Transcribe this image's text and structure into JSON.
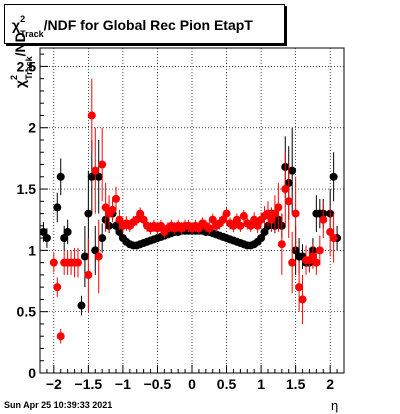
{
  "title": {
    "prefix": "χ",
    "sup": "2",
    "sub": "Track",
    "suffix": "/NDF for Global Rec Pion EtapT"
  },
  "ylabel": {
    "prefix": "χ",
    "sup": "2",
    "sub": "Track",
    "suffix": "/ND"
  },
  "xlabel": "η",
  "timestamp": "Sun Apr 25 10:39:33 2021",
  "chart_data": {
    "type": "scatter",
    "title": "χ2Track/NDF for Global Rec Pion EtapT",
    "xlabel": "η",
    "ylabel": "χ2Track/ND",
    "xlim": [
      -2.2,
      2.2
    ],
    "ylim": [
      0,
      2.65
    ],
    "grid": true,
    "x_ticks": [
      -2,
      -1.5,
      -1,
      -0.5,
      0,
      0.5,
      1,
      1.5,
      2
    ],
    "x_tick_labels": [
      "−2",
      "−1.5",
      "−1",
      "−0.5",
      "0",
      "0.5",
      "1",
      "1.5",
      "2"
    ],
    "y_ticks": [
      0,
      0.5,
      1,
      1.5,
      2,
      2.5
    ],
    "y_tick_labels": [
      "0",
      "0.5",
      "1",
      "1.5",
      "2",
      "2.5"
    ],
    "series": [
      {
        "color": "#000000",
        "points": [
          [
            -2.15,
            1.15,
            0.08
          ],
          [
            -2.1,
            1.1,
            0.08
          ],
          [
            -1.95,
            1.35,
            0.12
          ],
          [
            -1.9,
            1.6,
            0.15
          ],
          [
            -1.85,
            1.1,
            0.1
          ],
          [
            -1.8,
            1.15,
            0.1
          ],
          [
            -1.6,
            0.55,
            0.08
          ],
          [
            -1.55,
            0.95,
            0.25
          ],
          [
            -1.5,
            1.3,
            0.35
          ],
          [
            -1.45,
            1.6,
            0.3
          ],
          [
            -1.4,
            1.0,
            0.2
          ],
          [
            -1.35,
            1.6,
            0.3
          ],
          [
            -1.3,
            1.1,
            0.12
          ],
          [
            -1.25,
            1.25,
            0.08
          ],
          [
            -1.2,
            1.2,
            0.06
          ],
          [
            -1.15,
            1.3,
            0.05
          ],
          [
            -1.1,
            1.2,
            0.04
          ],
          [
            -1.05,
            1.15,
            0.04
          ],
          [
            -1.0,
            1.1,
            0.03
          ],
          [
            -0.95,
            1.07,
            0.03
          ],
          [
            -0.9,
            1.05,
            0.03
          ],
          [
            -0.85,
            1.04,
            0.02
          ],
          [
            -0.8,
            1.04,
            0.02
          ],
          [
            -0.75,
            1.05,
            0.02
          ],
          [
            -0.7,
            1.06,
            0.02
          ],
          [
            -0.65,
            1.07,
            0.02
          ],
          [
            -0.6,
            1.08,
            0.02
          ],
          [
            -0.55,
            1.09,
            0.02
          ],
          [
            -0.5,
            1.1,
            0.02
          ],
          [
            -0.45,
            1.11,
            0.02
          ],
          [
            -0.4,
            1.12,
            0.02
          ],
          [
            -0.35,
            1.13,
            0.02
          ],
          [
            -0.3,
            1.14,
            0.02
          ],
          [
            -0.25,
            1.15,
            0.02
          ],
          [
            -0.2,
            1.15,
            0.02
          ],
          [
            -0.15,
            1.16,
            0.02
          ],
          [
            -0.1,
            1.16,
            0.02
          ],
          [
            -0.05,
            1.16,
            0.02
          ],
          [
            0.0,
            1.16,
            0.02
          ],
          [
            0.05,
            1.16,
            0.02
          ],
          [
            0.1,
            1.16,
            0.02
          ],
          [
            0.15,
            1.16,
            0.02
          ],
          [
            0.2,
            1.15,
            0.02
          ],
          [
            0.25,
            1.15,
            0.02
          ],
          [
            0.3,
            1.14,
            0.02
          ],
          [
            0.35,
            1.13,
            0.02
          ],
          [
            0.4,
            1.12,
            0.02
          ],
          [
            0.45,
            1.11,
            0.02
          ],
          [
            0.5,
            1.1,
            0.02
          ],
          [
            0.55,
            1.09,
            0.02
          ],
          [
            0.6,
            1.08,
            0.02
          ],
          [
            0.65,
            1.07,
            0.02
          ],
          [
            0.7,
            1.06,
            0.02
          ],
          [
            0.75,
            1.05,
            0.02
          ],
          [
            0.8,
            1.04,
            0.02
          ],
          [
            0.85,
            1.04,
            0.02
          ],
          [
            0.9,
            1.05,
            0.03
          ],
          [
            0.95,
            1.07,
            0.03
          ],
          [
            1.0,
            1.1,
            0.03
          ],
          [
            1.05,
            1.15,
            0.04
          ],
          [
            1.1,
            1.2,
            0.04
          ],
          [
            1.15,
            1.3,
            0.05
          ],
          [
            1.2,
            1.2,
            0.06
          ],
          [
            1.25,
            1.25,
            0.08
          ],
          [
            1.3,
            1.2,
            0.1
          ],
          [
            1.35,
            1.68,
            0.25
          ],
          [
            1.4,
            1.55,
            0.3
          ],
          [
            1.45,
            1.65,
            0.35
          ],
          [
            1.5,
            1.0,
            0.2
          ],
          [
            1.55,
            0.95,
            0.15
          ],
          [
            1.6,
            0.95,
            0.1
          ],
          [
            1.65,
            0.9,
            0.08
          ],
          [
            1.7,
            0.9,
            0.08
          ],
          [
            1.75,
            1.0,
            0.1
          ],
          [
            1.8,
            1.3,
            0.15
          ],
          [
            1.85,
            1.3,
            0.12
          ],
          [
            1.9,
            1.3,
            0.12
          ],
          [
            2.0,
            1.3,
            0.2
          ],
          [
            2.05,
            1.6,
            0.2
          ],
          [
            2.1,
            1.1,
            0.1
          ]
        ]
      },
      {
        "color": "#ff0000",
        "points": [
          [
            -2.0,
            0.9,
            0.08
          ],
          [
            -1.95,
            0.7,
            0.08
          ],
          [
            -1.9,
            0.3,
            0.06
          ],
          [
            -1.85,
            0.9,
            0.1
          ],
          [
            -1.8,
            0.9,
            0.1
          ],
          [
            -1.75,
            0.9,
            0.1
          ],
          [
            -1.7,
            0.9,
            0.12
          ],
          [
            -1.65,
            0.9,
            0.12
          ],
          [
            -1.5,
            0.8,
            0.3
          ],
          [
            -1.45,
            2.1,
            0.3
          ],
          [
            -1.4,
            1.65,
            0.35
          ],
          [
            -1.35,
            0.95,
            0.3
          ],
          [
            -1.3,
            1.7,
            0.3
          ],
          [
            -1.25,
            1.35,
            0.2
          ],
          [
            -1.2,
            1.3,
            0.15
          ],
          [
            -1.15,
            1.33,
            0.1
          ],
          [
            -1.1,
            1.42,
            0.1
          ],
          [
            -1.05,
            1.25,
            0.08
          ],
          [
            -1.0,
            1.2,
            0.06
          ],
          [
            -0.95,
            1.22,
            0.06
          ],
          [
            -0.9,
            1.2,
            0.05
          ],
          [
            -0.85,
            1.23,
            0.05
          ],
          [
            -0.8,
            1.25,
            0.05
          ],
          [
            -0.75,
            1.3,
            0.05
          ],
          [
            -0.7,
            1.25,
            0.05
          ],
          [
            -0.65,
            1.2,
            0.05
          ],
          [
            -0.6,
            1.18,
            0.05
          ],
          [
            -0.55,
            1.2,
            0.05
          ],
          [
            -0.5,
            1.18,
            0.05
          ],
          [
            -0.45,
            1.2,
            0.05
          ],
          [
            -0.4,
            1.15,
            0.05
          ],
          [
            -0.35,
            1.18,
            0.05
          ],
          [
            -0.3,
            1.2,
            0.05
          ],
          [
            -0.25,
            1.18,
            0.05
          ],
          [
            -0.2,
            1.2,
            0.05
          ],
          [
            -0.15,
            1.18,
            0.05
          ],
          [
            -0.1,
            1.2,
            0.05
          ],
          [
            -0.05,
            1.2,
            0.05
          ],
          [
            0.0,
            1.18,
            0.05
          ],
          [
            0.05,
            1.2,
            0.05
          ],
          [
            0.1,
            1.18,
            0.05
          ],
          [
            0.15,
            1.22,
            0.05
          ],
          [
            0.2,
            1.2,
            0.05
          ],
          [
            0.25,
            1.18,
            0.05
          ],
          [
            0.3,
            1.25,
            0.05
          ],
          [
            0.35,
            1.2,
            0.05
          ],
          [
            0.4,
            1.22,
            0.05
          ],
          [
            0.45,
            1.25,
            0.05
          ],
          [
            0.5,
            1.3,
            0.05
          ],
          [
            0.55,
            1.22,
            0.05
          ],
          [
            0.6,
            1.2,
            0.05
          ],
          [
            0.65,
            1.25,
            0.05
          ],
          [
            0.7,
            1.2,
            0.05
          ],
          [
            0.75,
            1.28,
            0.05
          ],
          [
            0.8,
            1.22,
            0.05
          ],
          [
            0.85,
            1.2,
            0.05
          ],
          [
            0.9,
            1.25,
            0.06
          ],
          [
            0.95,
            1.2,
            0.06
          ],
          [
            1.0,
            1.25,
            0.06
          ],
          [
            1.05,
            1.28,
            0.08
          ],
          [
            1.1,
            1.3,
            0.1
          ],
          [
            1.15,
            1.25,
            0.1
          ],
          [
            1.2,
            1.3,
            0.15
          ],
          [
            1.25,
            1.35,
            0.2
          ],
          [
            1.3,
            1.05,
            0.25
          ],
          [
            1.35,
            1.5,
            0.3
          ],
          [
            1.4,
            1.4,
            0.3
          ],
          [
            1.45,
            0.9,
            0.25
          ],
          [
            1.5,
            1.3,
            0.3
          ],
          [
            1.55,
            0.7,
            0.2
          ],
          [
            1.6,
            0.6,
            0.2
          ],
          [
            1.65,
            0.92,
            0.12
          ],
          [
            1.7,
            0.92,
            0.1
          ],
          [
            1.75,
            0.95,
            0.1
          ],
          [
            1.8,
            0.9,
            0.1
          ],
          [
            1.85,
            1.0,
            0.12
          ],
          [
            1.9,
            1.25,
            0.15
          ],
          [
            2.0,
            1.15,
            0.2
          ],
          [
            2.05,
            1.1,
            0.2
          ]
        ]
      }
    ]
  }
}
